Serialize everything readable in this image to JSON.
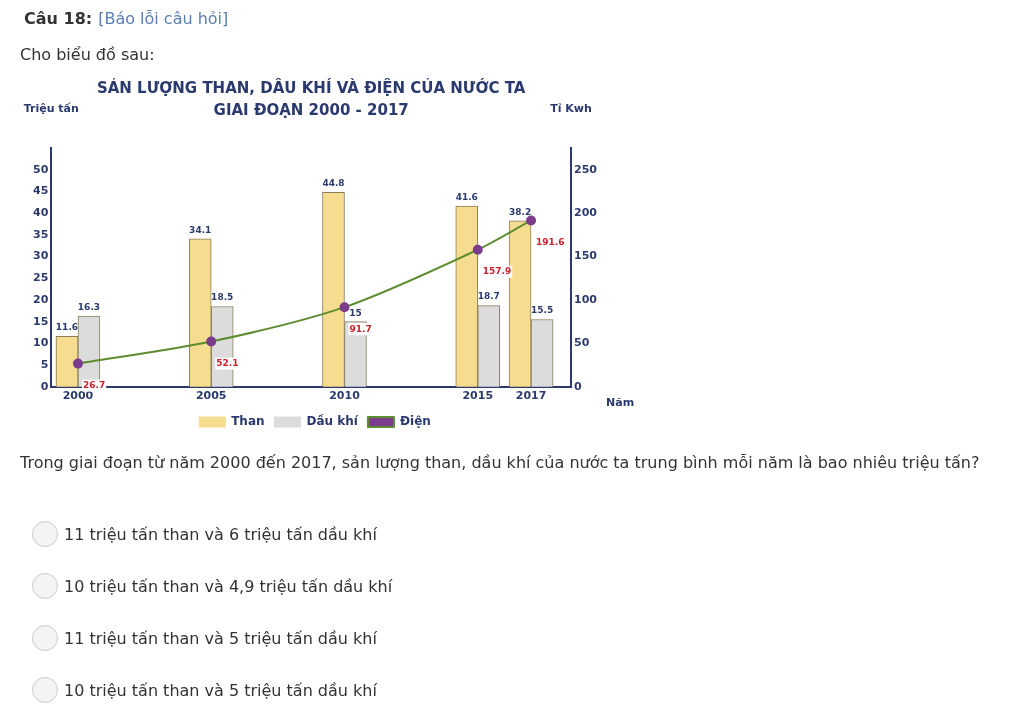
{
  "chart_data": {
    "type": "bar",
    "title": "SẢN LƯỢNG THAN, DẦU KHÍ VÀ ĐIỆN CỦA NƯỚC TA",
    "subtitle": "GIAI ĐOẠN 2000 - 2017",
    "ylabel": "Triệu tấn",
    "y2label": "Tỉ Kwh",
    "xlabel": "Năm",
    "x": [
      2000,
      2005,
      2010,
      2015,
      2017
    ],
    "xlim": [
      1999,
      2018.5
    ],
    "xticks": [
      2000,
      2005,
      2010,
      2015,
      2017
    ],
    "ylim": [
      0,
      55
    ],
    "yticks": [
      0,
      5,
      10,
      15,
      20,
      25,
      30,
      35,
      40,
      45,
      50
    ],
    "y2lim": [
      0,
      275
    ],
    "y2ticks": [
      0,
      50,
      100,
      150,
      200,
      250
    ],
    "series": [
      {
        "name": "Than",
        "color": "#f5dc8f",
        "values": [
          11.6,
          34.1,
          44.8,
          41.6,
          38.2
        ]
      },
      {
        "name": "Dầu khí",
        "color": "#dcdcdc",
        "values": [
          16.3,
          18.5,
          15,
          18.7,
          15.5
        ]
      },
      {
        "name": "Điện",
        "type": "line",
        "axis": "y2",
        "color": "#5e8c31",
        "values": [
          26.7,
          52.1,
          91.7,
          157.9,
          191.6
        ]
      }
    ],
    "marker": "circle",
    "grid": false,
    "legend": "bottom",
    "data_labels": true,
    "annotations": [
      "Câu 18:",
      "[Báo lỗi câu hỏi]",
      "Cho biểu đồ sau:",
      "Trong giai đoạn từ năm 2000 đến 2017, sản lượng than, dầu khí của nước ta trung bình mỗi năm là bao nhiêu triệu tấn?",
      "11 triệu tấn than và 6 triệu tấn dầu khí",
      "10 triệu tấn than và 4,9 triệu tấn dầu khí",
      "11 triệu tấn than và 5 triệu tấn dầu khí",
      "10 triệu tấn than và 5 triệu tấn dầu khí"
    ]
  }
}
